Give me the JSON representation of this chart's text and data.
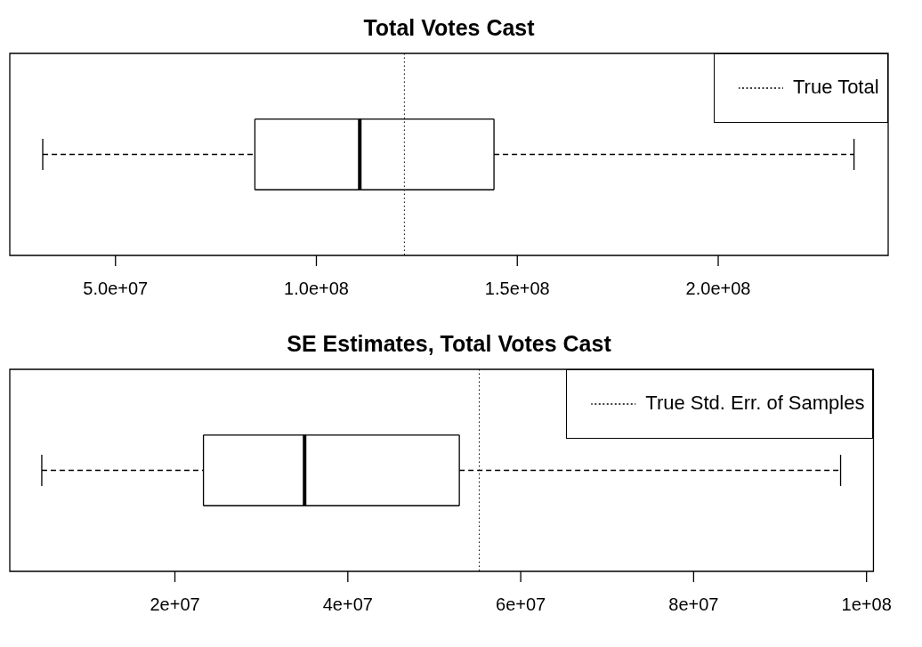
{
  "chart_data": [
    {
      "type": "box",
      "orientation": "horizontal",
      "title": "Total Votes Cast",
      "categories": [
        null
      ],
      "boxes": [
        {
          "low": 31900000,
          "q1": 84700000,
          "median": 110800000,
          "q3": 144200000,
          "high": 233800000
        }
      ],
      "xlim": [
        23700000,
        242300000
      ],
      "xticks": [
        {
          "value": 50000000,
          "label": "5.0e+07"
        },
        {
          "value": 100000000,
          "label": "1.0e+08"
        },
        {
          "value": 150000000,
          "label": "1.5e+08"
        },
        {
          "value": 200000000,
          "label": "2.0e+08"
        }
      ],
      "tick_labels": "x",
      "ref_lines": [
        {
          "axis": "x",
          "value": 121900000,
          "label": "True Total",
          "line_style": "dotted"
        }
      ],
      "legend": "top right"
    },
    {
      "type": "box",
      "orientation": "horizontal",
      "title": "SE Estimates, Total Votes Cast",
      "categories": [
        null
      ],
      "boxes": [
        {
          "low": 4600000,
          "q1": 23300000,
          "median": 35000000,
          "q3": 52900000,
          "high": 97000000
        }
      ],
      "xlim": [
        900000,
        100800000
      ],
      "xticks": [
        {
          "value": 20000000,
          "label": "2e+07"
        },
        {
          "value": 40000000,
          "label": "4e+07"
        },
        {
          "value": 60000000,
          "label": "6e+07"
        },
        {
          "value": 80000000,
          "label": "8e+07"
        },
        {
          "value": 100000000,
          "label": "1e+08"
        }
      ],
      "tick_labels": "x",
      "ref_lines": [
        {
          "axis": "x",
          "value": 55200000,
          "label": "True Std. Err. of Samples",
          "line_style": "dotted"
        }
      ],
      "legend": "top right"
    }
  ]
}
